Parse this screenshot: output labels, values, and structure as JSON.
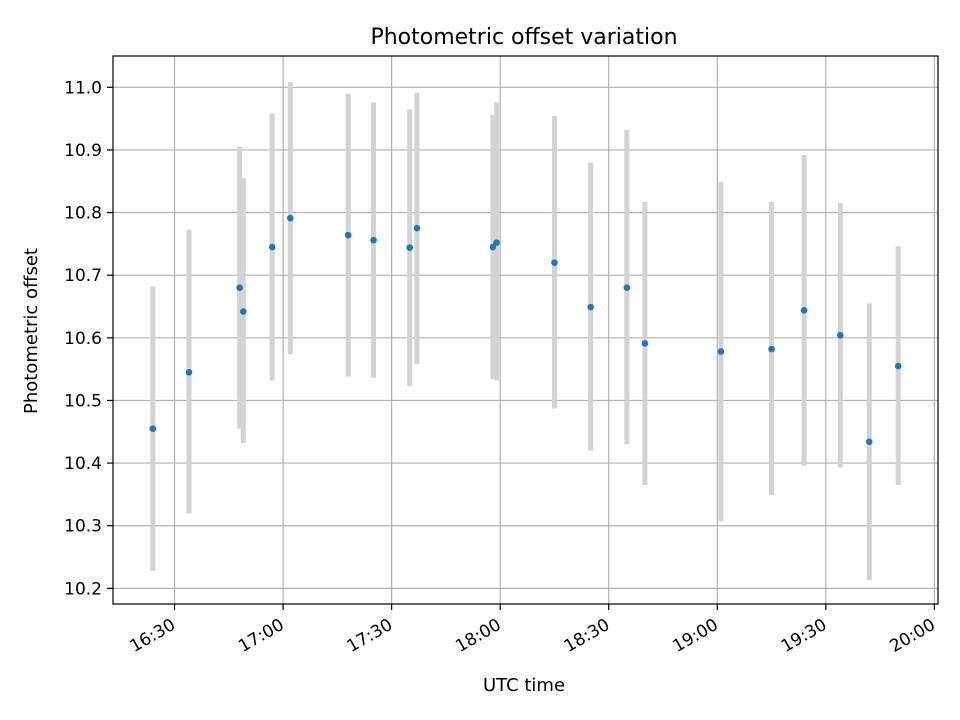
{
  "chart_data": {
    "type": "scatter",
    "title": "Photometric offset variation",
    "xlabel": "UTC time",
    "ylabel": "Photometric offset",
    "x_ticks": [
      "16:30",
      "17:00",
      "17:30",
      "18:00",
      "18:30",
      "19:00",
      "19:30",
      "20:00"
    ],
    "y_ticks": [
      "10.2",
      "10.3",
      "10.4",
      "10.5",
      "10.6",
      "10.7",
      "10.8",
      "10.9",
      "11.0"
    ],
    "xlim": [
      "16:13",
      "20:01"
    ],
    "ylim": [
      10.175,
      11.05
    ],
    "grid": true,
    "colors": {
      "point": "#1f77b4",
      "errorbar": "#d3d3d3",
      "grid": "#b0b0b0"
    },
    "series": [
      {
        "points": [
          {
            "x": "16:24",
            "y": 10.455,
            "err_low": 10.228,
            "err_high": 10.682
          },
          {
            "x": "16:34",
            "y": 10.545,
            "err_low": 10.32,
            "err_high": 10.773
          },
          {
            "x": "16:48",
            "y": 10.68,
            "err_low": 10.455,
            "err_high": 10.905
          },
          {
            "x": "16:49",
            "y": 10.642,
            "err_low": 10.432,
            "err_high": 10.855
          },
          {
            "x": "16:57",
            "y": 10.745,
            "err_low": 10.532,
            "err_high": 10.958
          },
          {
            "x": "17:02",
            "y": 10.791,
            "err_low": 10.574,
            "err_high": 11.008
          },
          {
            "x": "17:18",
            "y": 10.764,
            "err_low": 10.538,
            "err_high": 10.99
          },
          {
            "x": "17:25",
            "y": 10.756,
            "err_low": 10.536,
            "err_high": 10.976
          },
          {
            "x": "17:35",
            "y": 10.744,
            "err_low": 10.523,
            "err_high": 10.965
          },
          {
            "x": "17:37",
            "y": 10.775,
            "err_low": 10.558,
            "err_high": 10.992
          },
          {
            "x": "17:58",
            "y": 10.745,
            "err_low": 10.534,
            "err_high": 10.956
          },
          {
            "x": "17:59",
            "y": 10.752,
            "err_low": 10.532,
            "err_high": 10.976
          },
          {
            "x": "18:15",
            "y": 10.72,
            "err_low": 10.487,
            "err_high": 10.954
          },
          {
            "x": "18:25",
            "y": 10.649,
            "err_low": 10.42,
            "err_high": 10.88
          },
          {
            "x": "18:35",
            "y": 10.68,
            "err_low": 10.43,
            "err_high": 10.932
          },
          {
            "x": "18:40",
            "y": 10.591,
            "err_low": 10.365,
            "err_high": 10.817
          },
          {
            "x": "19:01",
            "y": 10.578,
            "err_low": 10.307,
            "err_high": 10.849
          },
          {
            "x": "19:15",
            "y": 10.582,
            "err_low": 10.349,
            "err_high": 10.817
          },
          {
            "x": "19:24",
            "y": 10.644,
            "err_low": 10.396,
            "err_high": 10.892
          },
          {
            "x": "19:34",
            "y": 10.604,
            "err_low": 10.393,
            "err_high": 10.815
          },
          {
            "x": "19:42",
            "y": 10.434,
            "err_low": 10.213,
            "err_high": 10.655
          },
          {
            "x": "19:50",
            "y": 10.555,
            "err_low": 10.365,
            "err_high": 10.746
          }
        ]
      }
    ]
  }
}
